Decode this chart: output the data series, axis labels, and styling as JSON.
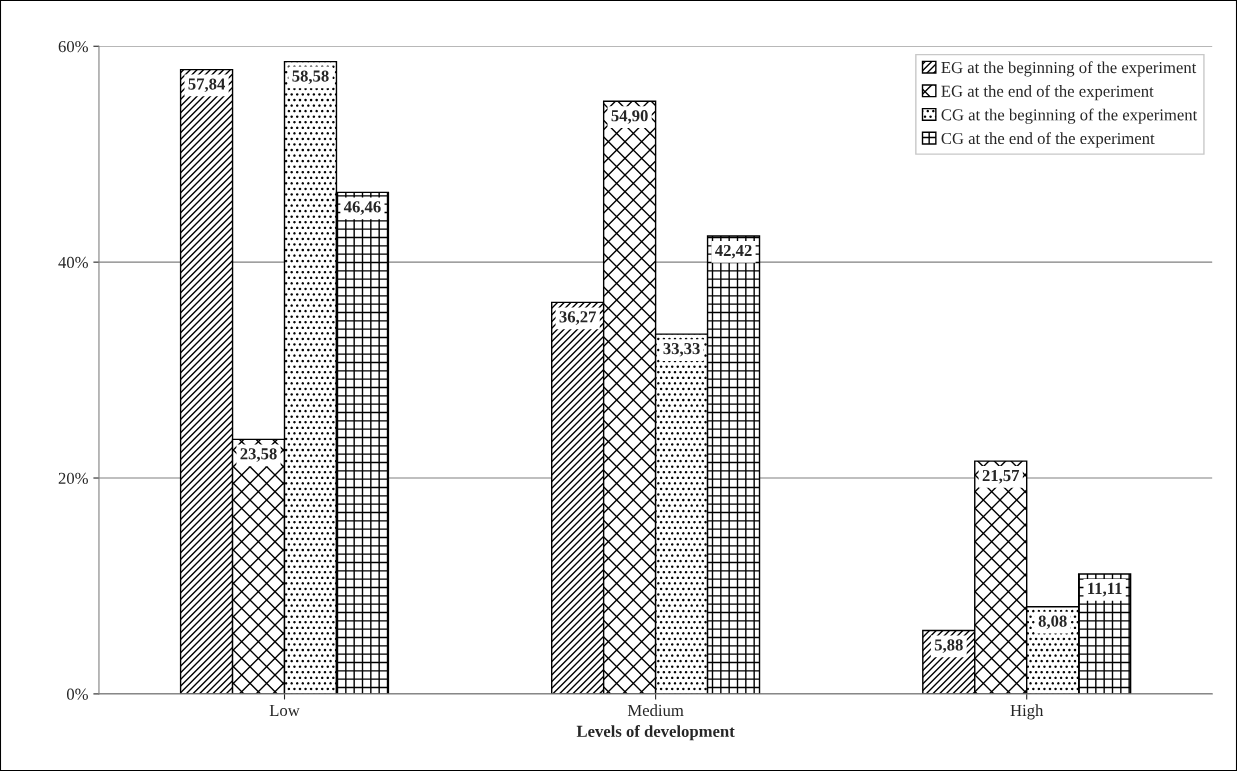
{
  "chart_data": {
    "type": "bar",
    "xlabel": "Levels of development",
    "categories": [
      "Low",
      "Medium",
      "High"
    ],
    "series": [
      {
        "name": "EG at the beginning of the experiment",
        "color": "#000000",
        "values": [
          57.84,
          36.27,
          5.88
        ],
        "value_labels": [
          "57,84",
          "36,27",
          "5,88"
        ]
      },
      {
        "name": "EG at the end of the experiment",
        "color": "#000000",
        "values": [
          23.58,
          54.9,
          21.57
        ],
        "value_labels": [
          "23,58",
          "54,90",
          "21,57"
        ]
      },
      {
        "name": "CG at the beginning of the experiment",
        "color": "#000000",
        "values": [
          58.58,
          33.33,
          8.08
        ],
        "value_labels": [
          "58,58",
          "33,33",
          "8,08"
        ]
      },
      {
        "name": "CG at the end of the experiment",
        "color": "#000000",
        "values": [
          46.46,
          42.42,
          11.11
        ],
        "value_labels": [
          "46,46",
          "42,42",
          "11,11"
        ]
      }
    ],
    "ylim": [
      0,
      60
    ],
    "yticks": [
      {
        "value": 0,
        "label": "0%"
      },
      {
        "value": 20,
        "label": "20%"
      },
      {
        "value": 40,
        "label": "40%"
      },
      {
        "value": 60,
        "label": "60%"
      }
    ],
    "grid": "y",
    "legend": "top right"
  }
}
